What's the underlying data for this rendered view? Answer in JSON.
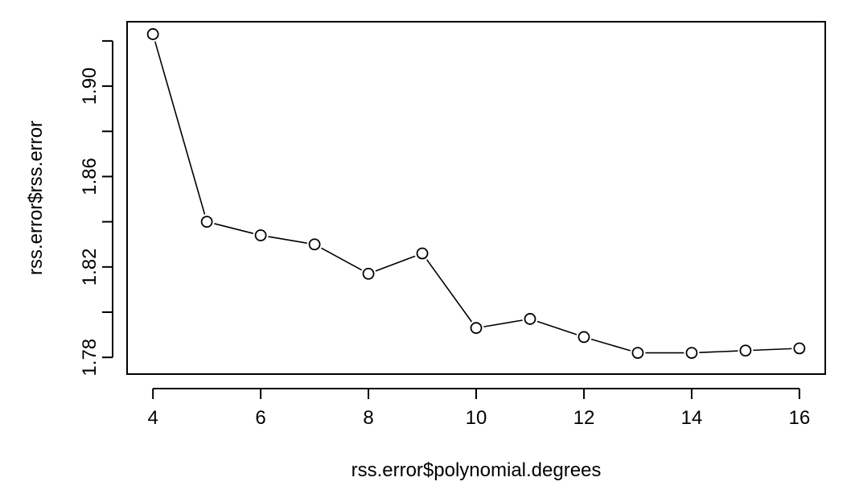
{
  "chart_data": {
    "type": "line",
    "title": "",
    "xlabel": "rss.error$polynomial.degrees",
    "ylabel": "rss.error$rss.error",
    "x": [
      4,
      5,
      6,
      7,
      8,
      9,
      10,
      11,
      12,
      13,
      14,
      15,
      16
    ],
    "series": [
      {
        "values": [
          1.923,
          1.84,
          1.834,
          1.83,
          1.817,
          1.826,
          1.793,
          1.797,
          1.789,
          1.782,
          1.782,
          1.783,
          1.784
        ],
        "marker": "open-circle",
        "color": "#000000"
      }
    ],
    "xlim": [
      3.52,
      16.48
    ],
    "ylim": [
      1.7726,
      1.9285
    ],
    "xticks": [
      4,
      6,
      8,
      10,
      12,
      14,
      16
    ],
    "xtick_labels": [
      "4",
      "6",
      "8",
      "10",
      "12",
      "14",
      "16"
    ],
    "yticks": [
      1.78,
      1.8,
      1.82,
      1.84,
      1.86,
      1.88,
      1.9,
      1.92
    ],
    "ytick_labels": [
      "1.78",
      "",
      "1.82",
      "",
      "1.86",
      "",
      "1.90",
      ""
    ],
    "grid": false,
    "legend": "none"
  }
}
